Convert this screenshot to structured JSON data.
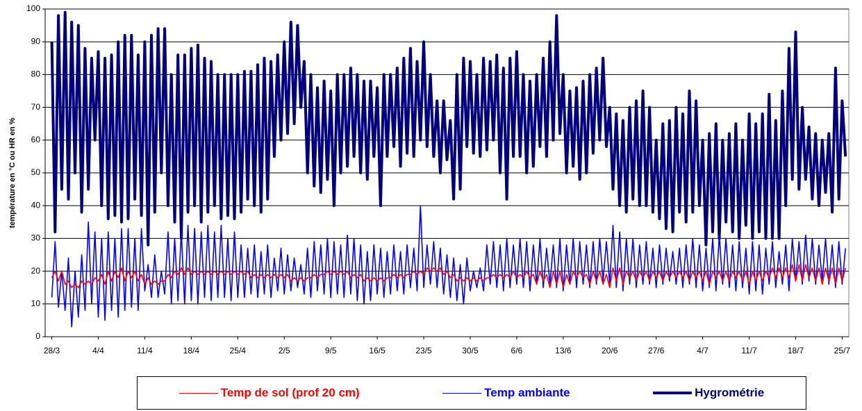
{
  "chart_data": {
    "type": "line",
    "ylabel": "température en °C ou HR en %",
    "ylim": [
      0,
      100
    ],
    "yticks": [
      0,
      10,
      20,
      30,
      40,
      50,
      60,
      70,
      80,
      90,
      100
    ],
    "grid": true,
    "xlim": [
      -1,
      120
    ],
    "xticks": [
      {
        "value": 0,
        "label": "28/3"
      },
      {
        "value": 7,
        "label": "4/4"
      },
      {
        "value": 14,
        "label": "11/4"
      },
      {
        "value": 21,
        "label": "18/4"
      },
      {
        "value": 28,
        "label": "25/4"
      },
      {
        "value": 35,
        "label": "2/5"
      },
      {
        "value": 42,
        "label": "9/5"
      },
      {
        "value": 49,
        "label": "16/5"
      },
      {
        "value": 56,
        "label": "23/5"
      },
      {
        "value": 63,
        "label": "30/5"
      },
      {
        "value": 70,
        "label": "6/6"
      },
      {
        "value": 77,
        "label": "13/6"
      },
      {
        "value": 84,
        "label": "20/6"
      },
      {
        "value": 91,
        "label": "27/6"
      },
      {
        "value": 98,
        "label": "4/7"
      },
      {
        "value": 105,
        "label": "11/7"
      },
      {
        "value": 112,
        "label": "18/7"
      },
      {
        "value": 119,
        "label": "25/7"
      }
    ],
    "legend": "bottom",
    "x": [
      0,
      0.5,
      1,
      1.5,
      2,
      2.5,
      3,
      3.5,
      4,
      4.5,
      5,
      5.5,
      6,
      6.5,
      7,
      7.5,
      8,
      8.5,
      9,
      9.5,
      10,
      10.5,
      11,
      11.5,
      12,
      12.5,
      13,
      13.5,
      14,
      14.5,
      15,
      15.5,
      16,
      16.5,
      17,
      17.5,
      18,
      18.5,
      19,
      19.5,
      20,
      20.5,
      21,
      21.5,
      22,
      22.5,
      23,
      23.5,
      24,
      24.5,
      25,
      25.5,
      26,
      26.5,
      27,
      27.5,
      28,
      28.5,
      29,
      29.5,
      30,
      30.5,
      31,
      31.5,
      32,
      32.5,
      33,
      33.5,
      34,
      34.5,
      35,
      35.5,
      36,
      36.5,
      37,
      37.5,
      38,
      38.5,
      39,
      39.5,
      40,
      40.5,
      41,
      41.5,
      42,
      42.5,
      43,
      43.5,
      44,
      44.5,
      45,
      45.5,
      46,
      46.5,
      47,
      47.5,
      48,
      48.5,
      49,
      49.5,
      50,
      50.5,
      51,
      51.5,
      52,
      52.5,
      53,
      53.5,
      54,
      54.5,
      55,
      55.5,
      56,
      56.5,
      57,
      57.5,
      58,
      58.5,
      59,
      59.5,
      60,
      60.5,
      61,
      61.5,
      62,
      62.5,
      63,
      63.5,
      64,
      64.5,
      65,
      65.5,
      66,
      66.5,
      67,
      67.5,
      68,
      68.5,
      69,
      69.5,
      70,
      70.5,
      71,
      71.5,
      72,
      72.5,
      73,
      73.5,
      74,
      74.5,
      75,
      75.5,
      76,
      76.5,
      77,
      77.5,
      78,
      78.5,
      79,
      79.5,
      80,
      80.5,
      81,
      81.5,
      82,
      82.5,
      83,
      83.5,
      84,
      84.5,
      85,
      85.5,
      86,
      86.5,
      87,
      87.5,
      88,
      88.5,
      89,
      89.5,
      90,
      90.5,
      91,
      91.5,
      92,
      92.5,
      93,
      93.5,
      94,
      94.5,
      95,
      95.5,
      96,
      96.5,
      97,
      97.5,
      98,
      98.5,
      99,
      99.5,
      100,
      100.5,
      101,
      101.5,
      102,
      102.5,
      103,
      103.5,
      104,
      104.5,
      105,
      105.5,
      106,
      106.5,
      107,
      107.5,
      108,
      108.5,
      109,
      109.5,
      110,
      110.5,
      111,
      111.5,
      112,
      112.5,
      113,
      113.5,
      114,
      114.5,
      115,
      115.5,
      116,
      116.5,
      117,
      117.5,
      118,
      118.5,
      119,
      119.5
    ],
    "series": [
      {
        "name": "Hygrométrie",
        "color": "#000080",
        "width": 4,
        "values": [
          90,
          32,
          98,
          45,
          99,
          42,
          96,
          50,
          95,
          38,
          88,
          45,
          85,
          60,
          87,
          40,
          85,
          36,
          86,
          37,
          90,
          35,
          92,
          36,
          92,
          42,
          86,
          37,
          90,
          28,
          92,
          38,
          94,
          50,
          94,
          40,
          80,
          35,
          86,
          30,
          86,
          38,
          88,
          40,
          89,
          35,
          85,
          38,
          84,
          40,
          80,
          36,
          80,
          37,
          80,
          36,
          80,
          38,
          81,
          42,
          81,
          40,
          83,
          38,
          85,
          42,
          84,
          55,
          86,
          60,
          90,
          62,
          96,
          65,
          95,
          70,
          84,
          50,
          80,
          46,
          76,
          44,
          78,
          48,
          75,
          40,
          80,
          50,
          80,
          52,
          82,
          55,
          80,
          50,
          78,
          48,
          78,
          55,
          76,
          40,
          80,
          55,
          80,
          58,
          82,
          52,
          85,
          56,
          88,
          55,
          84,
          60,
          90,
          58,
          80,
          55,
          72,
          50,
          72,
          54,
          66,
          42,
          80,
          45,
          85,
          58,
          84,
          56,
          80,
          55,
          85,
          57,
          84,
          60,
          86,
          50,
          82,
          42,
          85,
          55,
          87,
          55,
          80,
          50,
          78,
          52,
          80,
          58,
          85,
          55,
          90,
          60,
          98,
          62,
          80,
          50,
          75,
          52,
          76,
          48,
          78,
          50,
          80,
          56,
          82,
          60,
          85,
          58,
          70,
          45,
          68,
          40,
          66,
          38,
          70,
          42,
          72,
          40,
          75,
          40,
          70,
          38,
          60,
          36,
          65,
          33,
          66,
          32,
          70,
          38,
          68,
          35,
          75,
          38,
          72,
          40,
          60,
          28,
          62,
          32,
          65,
          30,
          60,
          35,
          62,
          32,
          65,
          30,
          60,
          34,
          68,
          30,
          65,
          32,
          68,
          30,
          74,
          30,
          66,
          30,
          75,
          40,
          88,
          48,
          93,
          45,
          70,
          48,
          64,
          42,
          62,
          40,
          60,
          44,
          62,
          38,
          82,
          42,
          72,
          55
        ]
      },
      {
        "name": "Temp ambiante",
        "color": "#0000ff",
        "width": 1.6,
        "values": [
          12,
          29,
          9,
          20,
          8,
          24,
          3,
          20,
          6,
          25,
          8,
          35,
          10,
          32,
          6,
          30,
          5,
          32,
          8,
          30,
          6,
          33,
          8,
          33,
          9,
          30,
          8,
          33,
          14,
          22,
          12,
          25,
          12,
          20,
          13,
          32,
          10,
          30,
          11,
          32,
          10,
          34,
          11,
          33,
          10,
          32,
          12,
          34,
          11,
          32,
          12,
          34,
          12,
          30,
          11,
          32,
          12,
          28,
          12,
          27,
          13,
          28,
          12,
          26,
          13,
          28,
          12,
          24,
          14,
          27,
          13,
          25,
          14,
          24,
          15,
          22,
          13,
          27,
          12,
          29,
          14,
          28,
          13,
          30,
          12,
          29,
          13,
          28,
          12,
          31,
          13,
          30,
          11,
          28,
          10,
          26,
          11,
          28,
          13,
          27,
          12,
          26,
          13,
          28,
          14,
          26,
          13,
          28,
          15,
          27,
          14,
          40,
          15,
          28,
          16,
          29,
          15,
          27,
          13,
          25,
          12,
          24,
          11,
          22,
          10,
          24,
          14,
          20,
          15,
          21,
          14,
          28,
          16,
          29,
          15,
          28,
          14,
          30,
          15,
          28,
          16,
          30,
          15,
          29,
          14,
          28,
          16,
          30,
          15,
          27,
          16,
          28,
          15,
          30,
          14,
          28,
          16,
          30,
          15,
          29,
          16,
          28,
          15,
          29,
          16,
          30,
          17,
          29,
          16,
          34,
          15,
          32,
          14,
          30,
          16,
          30,
          15,
          28,
          16,
          29,
          16,
          27,
          15,
          28,
          16,
          27,
          17,
          26,
          16,
          27,
          15,
          28,
          16,
          30,
          15,
          28,
          14,
          27,
          15,
          30,
          14,
          31,
          16,
          30,
          15,
          28,
          14,
          29,
          15,
          27,
          13,
          29,
          14,
          28,
          13,
          27,
          16,
          29,
          15,
          26,
          16,
          28,
          14,
          30,
          17,
          29,
          16,
          31,
          17,
          30,
          16,
          28,
          17,
          30,
          16,
          28,
          15,
          29,
          16,
          27
        ]
      },
      {
        "name": "Temp de sol (prof 20 cm)",
        "color": "#ff0000",
        "width": 1.6,
        "values": [
          18,
          20,
          17,
          20,
          16,
          17,
          15,
          16,
          15,
          17,
          16,
          17,
          16,
          18,
          17,
          19,
          16,
          20,
          17,
          20,
          18,
          21,
          17,
          20,
          18,
          20,
          17,
          19,
          16,
          18,
          16,
          17,
          16,
          17,
          17,
          19,
          18,
          20,
          19,
          21,
          19,
          21,
          19,
          20,
          19,
          20,
          19,
          20,
          19,
          20,
          19,
          20,
          19,
          20,
          19,
          20,
          19,
          20,
          19,
          20,
          18,
          19,
          18,
          19,
          18,
          19,
          18,
          19,
          18,
          19,
          18,
          19,
          17,
          18,
          17,
          18,
          17,
          18,
          18,
          19,
          18,
          19,
          19,
          20,
          19,
          20,
          19,
          20,
          19,
          20,
          18,
          19,
          18,
          19,
          17,
          18,
          17,
          18,
          17,
          18,
          17,
          18,
          18,
          19,
          18,
          19,
          18,
          19,
          19,
          20,
          19,
          20,
          19,
          21,
          20,
          21,
          20,
          21,
          19,
          20,
          18,
          19,
          17,
          18,
          17,
          18,
          17,
          18,
          17,
          18,
          17,
          18,
          18,
          19,
          18,
          19,
          18,
          19,
          18,
          20,
          18,
          19,
          18,
          20,
          18,
          19,
          16,
          20,
          17,
          19,
          15,
          20,
          16,
          20,
          15,
          19,
          16,
          20,
          18,
          20,
          18,
          19,
          16,
          20,
          17,
          20,
          16,
          19,
          15,
          21,
          17,
          21,
          16,
          20,
          18,
          20,
          17,
          20,
          18,
          20,
          17,
          20,
          18,
          20,
          17,
          20,
          18,
          20,
          18,
          20,
          18,
          20,
          17,
          20,
          18,
          20,
          17,
          20,
          16,
          20,
          18,
          20,
          17,
          20,
          17,
          20,
          18,
          20,
          17,
          20,
          16,
          20,
          17,
          20,
          17,
          20,
          18,
          21,
          18,
          21,
          18,
          21,
          18,
          22,
          17,
          22,
          17,
          22,
          18,
          21,
          17,
          21,
          16,
          21,
          17,
          21,
          16,
          21,
          17,
          21
        ]
      }
    ]
  }
}
